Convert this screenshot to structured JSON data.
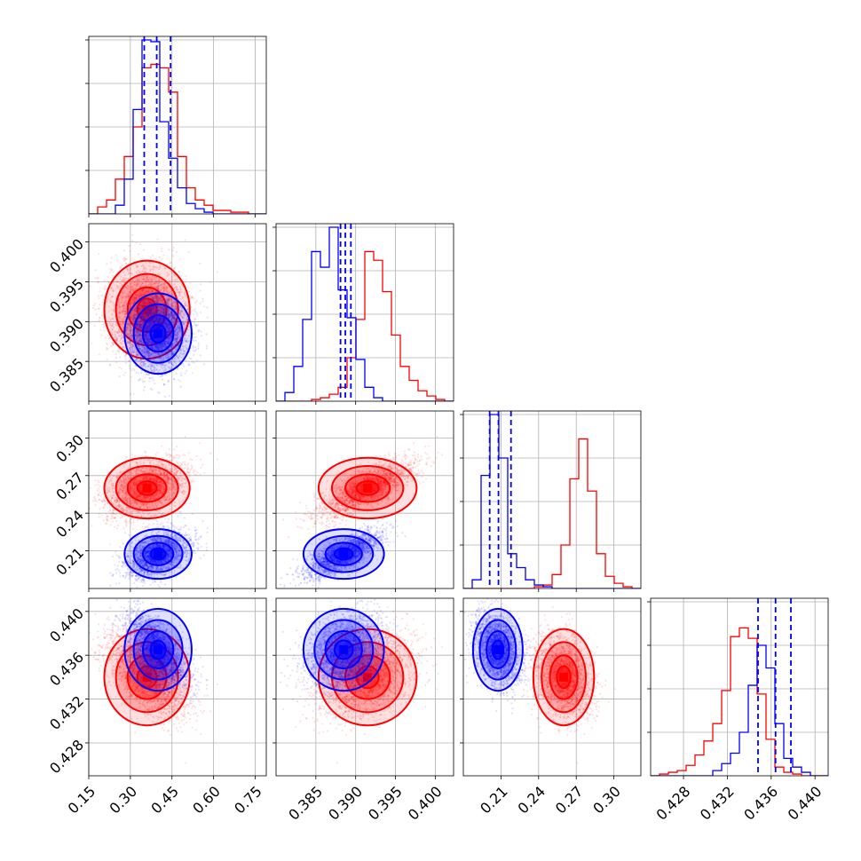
{
  "chart_data": {
    "type": "corner",
    "colors": {
      "red": "#ff0000",
      "blue": "#0000ff"
    },
    "series": [
      {
        "color": "red",
        "mean": [
          0.36,
          0.3915,
          0.26,
          0.434
        ],
        "sd": [
          0.07,
          0.0028,
          0.011,
          0.002
        ],
        "hist": [
          [
            0,
            0.04,
            0.08,
            0.2,
            0.33,
            0.5,
            0.84,
            0.86,
            0.84,
            0.7,
            0.33,
            0.15,
            0.08,
            0.05,
            0.02,
            0.02,
            0.01,
            0.01,
            0,
            0
          ],
          [
            0,
            0,
            0,
            0,
            0.01,
            0.02,
            0.04,
            0.08,
            0.25,
            0.47,
            0.86,
            0.81,
            0.63,
            0.38,
            0.2,
            0.12,
            0.06,
            0.03,
            0.01,
            0
          ],
          [
            0,
            0,
            0,
            0,
            0,
            0,
            0,
            0,
            0.01,
            0.02,
            0.08,
            0.25,
            0.63,
            0.86,
            0.56,
            0.2,
            0.07,
            0.03,
            0.01,
            0
          ],
          [
            0,
            0.01,
            0.02,
            0.03,
            0.06,
            0.12,
            0.2,
            0.3,
            0.49,
            0.8,
            0.85,
            0.79,
            0.47,
            0.21,
            0.05,
            0.02,
            0.01,
            0,
            0,
            0
          ]
        ]
      },
      {
        "color": "blue",
        "mean": [
          0.4,
          0.3885,
          0.2075,
          0.4365
        ],
        "sd": [
          0.055,
          0.0023,
          0.009,
          0.0017
        ],
        "quantiles": [
          [
            0.35,
            0.395,
            0.445
          ],
          [
            0.3881,
            0.3887,
            0.3894
          ],
          [
            0.201,
            0.208,
            0.218
          ],
          [
            0.4348,
            0.4364,
            0.4378
          ]
        ],
        "hist": [
          [
            0,
            0,
            0,
            0.05,
            0.2,
            0.6,
            1.0,
            0.99,
            0.53,
            0.32,
            0.15,
            0.06,
            0.03,
            0.01,
            0,
            0,
            0,
            0,
            0,
            0
          ],
          [
            0,
            0.05,
            0.2,
            0.47,
            0.86,
            0.77,
            1.0,
            0.64,
            0.48,
            0.24,
            0.08,
            0.02,
            0,
            0,
            0,
            0,
            0,
            0,
            0,
            0
          ],
          [
            0,
            0.05,
            0.65,
            1.0,
            0.75,
            0.2,
            0.12,
            0.05,
            0.02,
            0.01,
            0,
            0,
            0,
            0,
            0,
            0,
            0,
            0,
            0,
            0
          ],
          [
            0,
            0,
            0,
            0,
            0,
            0,
            0,
            0.03,
            0.07,
            0.13,
            0.25,
            0.52,
            0.75,
            0.62,
            0.3,
            0.1,
            0.05,
            0.02,
            0,
            0
          ]
        ]
      }
    ],
    "params": [
      {
        "range": [
          0.15,
          0.79
        ],
        "ticks": [
          "0.15",
          "0.30",
          "0.45",
          "0.60",
          "0.75"
        ]
      },
      {
        "range": [
          0.38,
          0.4023
        ],
        "ticks": [
          "0.385",
          "0.390",
          "0.395",
          "0.400"
        ]
      },
      {
        "range": [
          0.18,
          0.3215
        ],
        "ticks": [
          "0.21",
          "0.24",
          "0.27",
          "0.30"
        ]
      },
      {
        "range": [
          0.425,
          0.4412
        ],
        "ticks": [
          "0.428",
          "0.432",
          "0.436",
          "0.440"
        ]
      }
    ],
    "grid": true
  }
}
